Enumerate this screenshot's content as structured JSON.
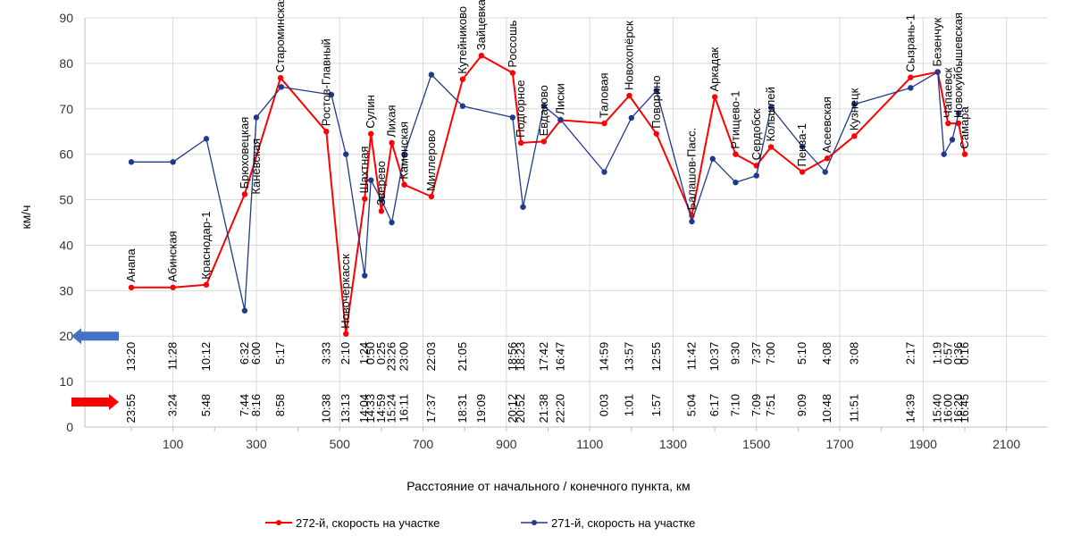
{
  "chart_data": {
    "type": "line",
    "title": "",
    "xlabel": "Расстояние от начального / конечного пункта, км",
    "ylabel": "км/ч",
    "xlim": [
      0,
      2200
    ],
    "ylim": [
      0,
      90
    ],
    "xticks": [
      100,
      300,
      500,
      700,
      900,
      1100,
      1300,
      1500,
      1700,
      1900,
      2100
    ],
    "yticks": [
      0,
      10,
      20,
      30,
      40,
      50,
      60,
      70,
      80,
      90
    ],
    "colors": {
      "red": "#ff0000",
      "blue": "#1f3a8a",
      "grid": "#d9d9d9",
      "arrow_blue": "#4472c4"
    },
    "series": [
      {
        "name": "272-й, скорость на участке",
        "color": "#ff0000",
        "points": [
          [
            0,
            30.7
          ],
          [
            100,
            30.7
          ],
          [
            180,
            31.3
          ],
          [
            272,
            51.2
          ],
          [
            358,
            76.8
          ],
          [
            468,
            65
          ],
          [
            515,
            20.5
          ],
          [
            560,
            50.2
          ],
          [
            575,
            64.5
          ],
          [
            600,
            47.5
          ],
          [
            625,
            62.5
          ],
          [
            655,
            53.3
          ],
          [
            720,
            50.7
          ],
          [
            795,
            76.5
          ],
          [
            840,
            81.7
          ],
          [
            915,
            77.9
          ],
          [
            935,
            62.5
          ],
          [
            990,
            62.8
          ],
          [
            1030,
            67.5
          ],
          [
            1135,
            66.8
          ],
          [
            1195,
            72.9
          ],
          [
            1260,
            64.5
          ],
          [
            1345,
            46.5
          ],
          [
            1400,
            72.6
          ],
          [
            1450,
            60
          ],
          [
            1500,
            57.5
          ],
          [
            1535,
            61.6
          ],
          [
            1610,
            56.1
          ],
          [
            1670,
            59.1
          ],
          [
            1735,
            64
          ],
          [
            1870,
            76.9
          ],
          [
            1935,
            78.1
          ],
          [
            1960,
            66.8
          ],
          [
            1985,
            66.8
          ],
          [
            2000,
            60
          ]
        ]
      },
      {
        "name": "271-й, скорость на участке",
        "color": "#1f3a8a",
        "points": [
          [
            0,
            58.3
          ],
          [
            100,
            58.3
          ],
          [
            180,
            63.4
          ],
          [
            272,
            25.6
          ],
          [
            300,
            68.1
          ],
          [
            360,
            74.8
          ],
          [
            480,
            73.1
          ],
          [
            515,
            60
          ],
          [
            560,
            33.3
          ],
          [
            575,
            54.3
          ],
          [
            600,
            50
          ],
          [
            625,
            45
          ],
          [
            655,
            60
          ],
          [
            720,
            77.5
          ],
          [
            795,
            70.6
          ],
          [
            915,
            68.1
          ],
          [
            940,
            48.4
          ],
          [
            990,
            70.6
          ],
          [
            1030,
            67.6
          ],
          [
            1135,
            56.1
          ],
          [
            1200,
            68
          ],
          [
            1260,
            74
          ],
          [
            1345,
            45.2
          ],
          [
            1395,
            59
          ],
          [
            1450,
            53.8
          ],
          [
            1500,
            55.3
          ],
          [
            1535,
            70.3
          ],
          [
            1610,
            61.7
          ],
          [
            1665,
            56.1
          ],
          [
            1735,
            71
          ],
          [
            1870,
            74.6
          ],
          [
            1935,
            78.1
          ],
          [
            1950,
            60
          ],
          [
            1970,
            63.2
          ],
          [
            1985,
            69
          ]
        ]
      }
    ],
    "stations": [
      {
        "name": "Анапа",
        "km": 0,
        "t272": "23:55",
        "t271": "13:20"
      },
      {
        "name": "Абинская",
        "km": 100,
        "t272": "3:24",
        "t271": "11:28"
      },
      {
        "name": "Краснодар-1",
        "km": 180,
        "t272": "5:48",
        "t271": "10:12"
      },
      {
        "name": "Брюховецкая",
        "km": 272,
        "t272": "7:44",
        "t271": "6:32"
      },
      {
        "name": "Каневская",
        "km": 300,
        "t272": "8:16",
        "t271": "6:00"
      },
      {
        "name": "Староминская-Тимашевская",
        "km": 358,
        "t272": "8:58",
        "t271": "5:17"
      },
      {
        "name": "Ростов-Главный",
        "km": 468,
        "t272": "10:38",
        "t271": "3:33"
      },
      {
        "name": "Новочеркасск",
        "km": 515,
        "t272": "13:13",
        "t271": "2:10"
      },
      {
        "name": "Шахтная",
        "km": 560,
        "t272": "14:04",
        "t271": "1:24"
      },
      {
        "name": "Сулин",
        "km": 575,
        "t272": "14:33",
        "t271": "0:50"
      },
      {
        "name": "Зверево",
        "km": 600,
        "t272": "14:59",
        "t271": "0:25"
      },
      {
        "name": "Лихая",
        "km": 625,
        "t272": "15:24",
        "t271": "23:26"
      },
      {
        "name": "Каменская",
        "km": 655,
        "t272": "16:11",
        "t271": "23:00"
      },
      {
        "name": "Миллерово",
        "km": 720,
        "t272": "17:37",
        "t271": "22:03"
      },
      {
        "name": "Кутейниково",
        "km": 795,
        "t272": "18:31",
        "t271": "21:05"
      },
      {
        "name": "Зайцевка",
        "km": 840,
        "t272": "19:09",
        "t271": ""
      },
      {
        "name": "Россошь",
        "km": 915,
        "t272": "20:12",
        "t271": "18:56"
      },
      {
        "name": "Подгорное",
        "km": 935,
        "t272": "20:52",
        "t271": "18:23"
      },
      {
        "name": "Евдаково",
        "km": 990,
        "t272": "21:38",
        "t271": "17:42"
      },
      {
        "name": "Лиски",
        "km": 1030,
        "t272": "22:20",
        "t271": "16:47"
      },
      {
        "name": "Таловая",
        "km": 1135,
        "t272": "0:03",
        "t271": "14:59"
      },
      {
        "name": "Новохопёрск",
        "km": 1195,
        "t272": "1:01",
        "t271": "13:57"
      },
      {
        "name": "Поворино",
        "km": 1260,
        "t272": "1:57",
        "t271": "12:55"
      },
      {
        "name": "Балашов-Пасс.",
        "km": 1345,
        "t272": "5:04",
        "t271": "11:42"
      },
      {
        "name": "Аркадак",
        "km": 1400,
        "t272": "6:17",
        "t271": "10:37"
      },
      {
        "name": "Ртищево-1",
        "km": 1450,
        "t272": "7:10",
        "t271": "9:30"
      },
      {
        "name": "Сердобск",
        "km": 1500,
        "t272": "7:09",
        "t271": "7:37"
      },
      {
        "name": "Кольшлей",
        "km": 1535,
        "t272": "7:51",
        "t271": "7:00"
      },
      {
        "name": "Пенза-1",
        "km": 1610,
        "t272": "9:09",
        "t271": "5:10"
      },
      {
        "name": "Асеевская",
        "km": 1670,
        "t272": "10:48",
        "t271": "4:08"
      },
      {
        "name": "Кузнецк",
        "km": 1735,
        "t272": "11:51",
        "t271": "3:08"
      },
      {
        "name": "Сызрань-1",
        "km": 1870,
        "t272": "14:39",
        "t271": "2:17"
      },
      {
        "name": "Безенчук",
        "km": 1935,
        "t272": "15:40",
        "t271": "1:19"
      },
      {
        "name": "Чапаевск",
        "km": 1960,
        "t272": "16:00",
        "t271": "0:57"
      },
      {
        "name": "Новокуйбышевская",
        "km": 1985,
        "t272": "16:20",
        "t271": "0:36"
      },
      {
        "name": "Самара",
        "km": 2000,
        "t272": "16:45",
        "t271": "0:16"
      }
    ],
    "legend": {
      "placement": "bottom",
      "items": [
        "272-й, скорость на участке",
        "271-й, скорость на участке"
      ]
    }
  }
}
